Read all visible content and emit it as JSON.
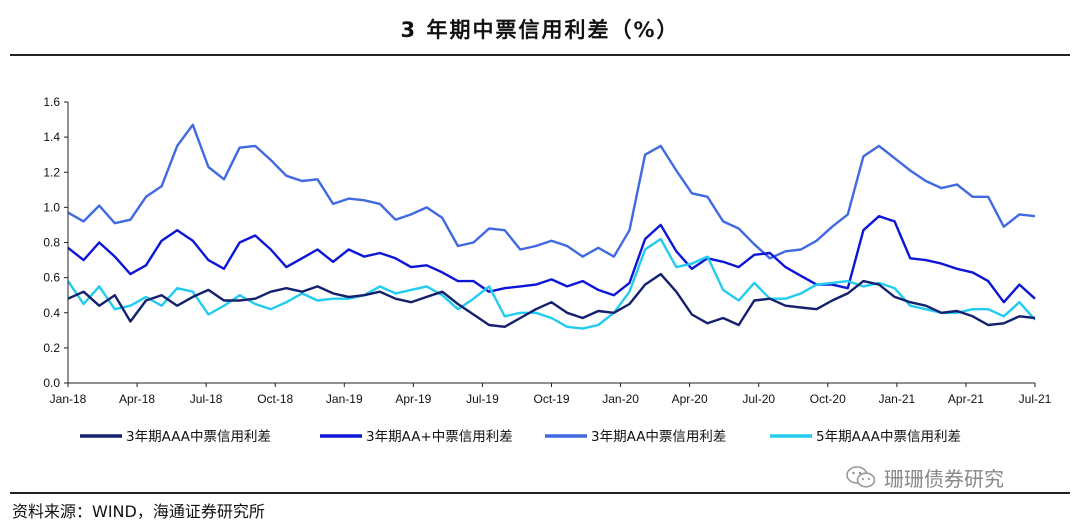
{
  "page": {
    "title": "3 年期中票信用利差（%）",
    "source": "资料来源：WIND，海通证券研究所",
    "watermark": "珊珊债券研究"
  },
  "chart_data": {
    "type": "line",
    "title": "3 年期中票信用利差（%）",
    "xlabel": "",
    "ylabel": "",
    "x_ticks": [
      "Jan-18",
      "Apr-18",
      "Jul-18",
      "Oct-18",
      "Jan-19",
      "Apr-19",
      "Jul-19",
      "Oct-19",
      "Jan-20",
      "Apr-20",
      "Jul-20",
      "Oct-20",
      "Jan-21",
      "Apr-21",
      "Jul-21"
    ],
    "y_ticks": [
      "0.0",
      "0.2",
      "0.4",
      "0.6",
      "0.8",
      "1.0",
      "1.2",
      "1.4",
      "1.6"
    ],
    "ylim": [
      0,
      1.6
    ],
    "x_range": [
      "2018-01",
      "2021-07"
    ],
    "grid": false,
    "legend_position": "bottom",
    "series": [
      {
        "name": "3年期AAA中票信用利差",
        "color": "#14206e",
        "values": [
          0.48,
          0.52,
          0.44,
          0.5,
          0.35,
          0.47,
          0.5,
          0.44,
          0.49,
          0.53,
          0.47,
          0.47,
          0.48,
          0.52,
          0.54,
          0.52,
          0.55,
          0.51,
          0.49,
          0.5,
          0.52,
          0.48,
          0.46,
          0.49,
          0.52,
          0.45,
          0.39,
          0.33,
          0.32,
          0.37,
          0.42,
          0.46,
          0.4,
          0.37,
          0.41,
          0.4,
          0.45,
          0.56,
          0.62,
          0.52,
          0.39,
          0.34,
          0.37,
          0.33,
          0.47,
          0.48,
          0.44,
          0.43,
          0.42,
          0.47,
          0.51,
          0.58,
          0.56,
          0.49,
          0.46,
          0.44,
          0.4,
          0.41,
          0.38,
          0.33,
          0.34,
          0.38,
          0.37
        ]
      },
      {
        "name": "3年期AA+中票信用利差",
        "color": "#0d16d6",
        "values": [
          0.77,
          0.7,
          0.8,
          0.72,
          0.62,
          0.67,
          0.81,
          0.87,
          0.81,
          0.7,
          0.65,
          0.8,
          0.84,
          0.76,
          0.66,
          0.71,
          0.76,
          0.69,
          0.76,
          0.72,
          0.74,
          0.71,
          0.66,
          0.67,
          0.63,
          0.58,
          0.58,
          0.52,
          0.54,
          0.55,
          0.56,
          0.59,
          0.55,
          0.58,
          0.53,
          0.5,
          0.57,
          0.82,
          0.9,
          0.75,
          0.65,
          0.71,
          0.69,
          0.66,
          0.73,
          0.74,
          0.66,
          0.61,
          0.56,
          0.56,
          0.54,
          0.87,
          0.95,
          0.92,
          0.71,
          0.7,
          0.68,
          0.65,
          0.63,
          0.58,
          0.46,
          0.56,
          0.48
        ]
      },
      {
        "name": "3年期AA中票信用利差",
        "color": "#4169e1",
        "values": [
          0.97,
          0.92,
          1.01,
          0.91,
          0.93,
          1.06,
          1.12,
          1.35,
          1.47,
          1.23,
          1.16,
          1.34,
          1.35,
          1.27,
          1.18,
          1.15,
          1.16,
          1.02,
          1.05,
          1.04,
          1.02,
          0.93,
          0.96,
          1.0,
          0.94,
          0.78,
          0.8,
          0.88,
          0.87,
          0.76,
          0.78,
          0.81,
          0.78,
          0.72,
          0.77,
          0.72,
          0.87,
          1.3,
          1.35,
          1.21,
          1.08,
          1.06,
          0.92,
          0.88,
          0.79,
          0.71,
          0.75,
          0.76,
          0.81,
          0.89,
          0.96,
          1.29,
          1.35,
          1.28,
          1.21,
          1.15,
          1.11,
          1.13,
          1.06,
          1.06,
          0.89,
          0.96,
          0.95
        ]
      },
      {
        "name": "5年期AAA中票信用利差",
        "color": "#22ccf0",
        "values": [
          0.58,
          0.45,
          0.55,
          0.42,
          0.44,
          0.49,
          0.44,
          0.54,
          0.52,
          0.39,
          0.44,
          0.5,
          0.45,
          0.42,
          0.46,
          0.51,
          0.47,
          0.48,
          0.48,
          0.5,
          0.55,
          0.51,
          0.53,
          0.55,
          0.5,
          0.42,
          0.48,
          0.55,
          0.38,
          0.4,
          0.4,
          0.37,
          0.32,
          0.31,
          0.33,
          0.4,
          0.52,
          0.76,
          0.82,
          0.66,
          0.68,
          0.72,
          0.53,
          0.47,
          0.57,
          0.48,
          0.48,
          0.51,
          0.56,
          0.57,
          0.58,
          0.55,
          0.57,
          0.54,
          0.44,
          0.42,
          0.4,
          0.4,
          0.42,
          0.42,
          0.38,
          0.46,
          0.36
        ]
      }
    ]
  }
}
